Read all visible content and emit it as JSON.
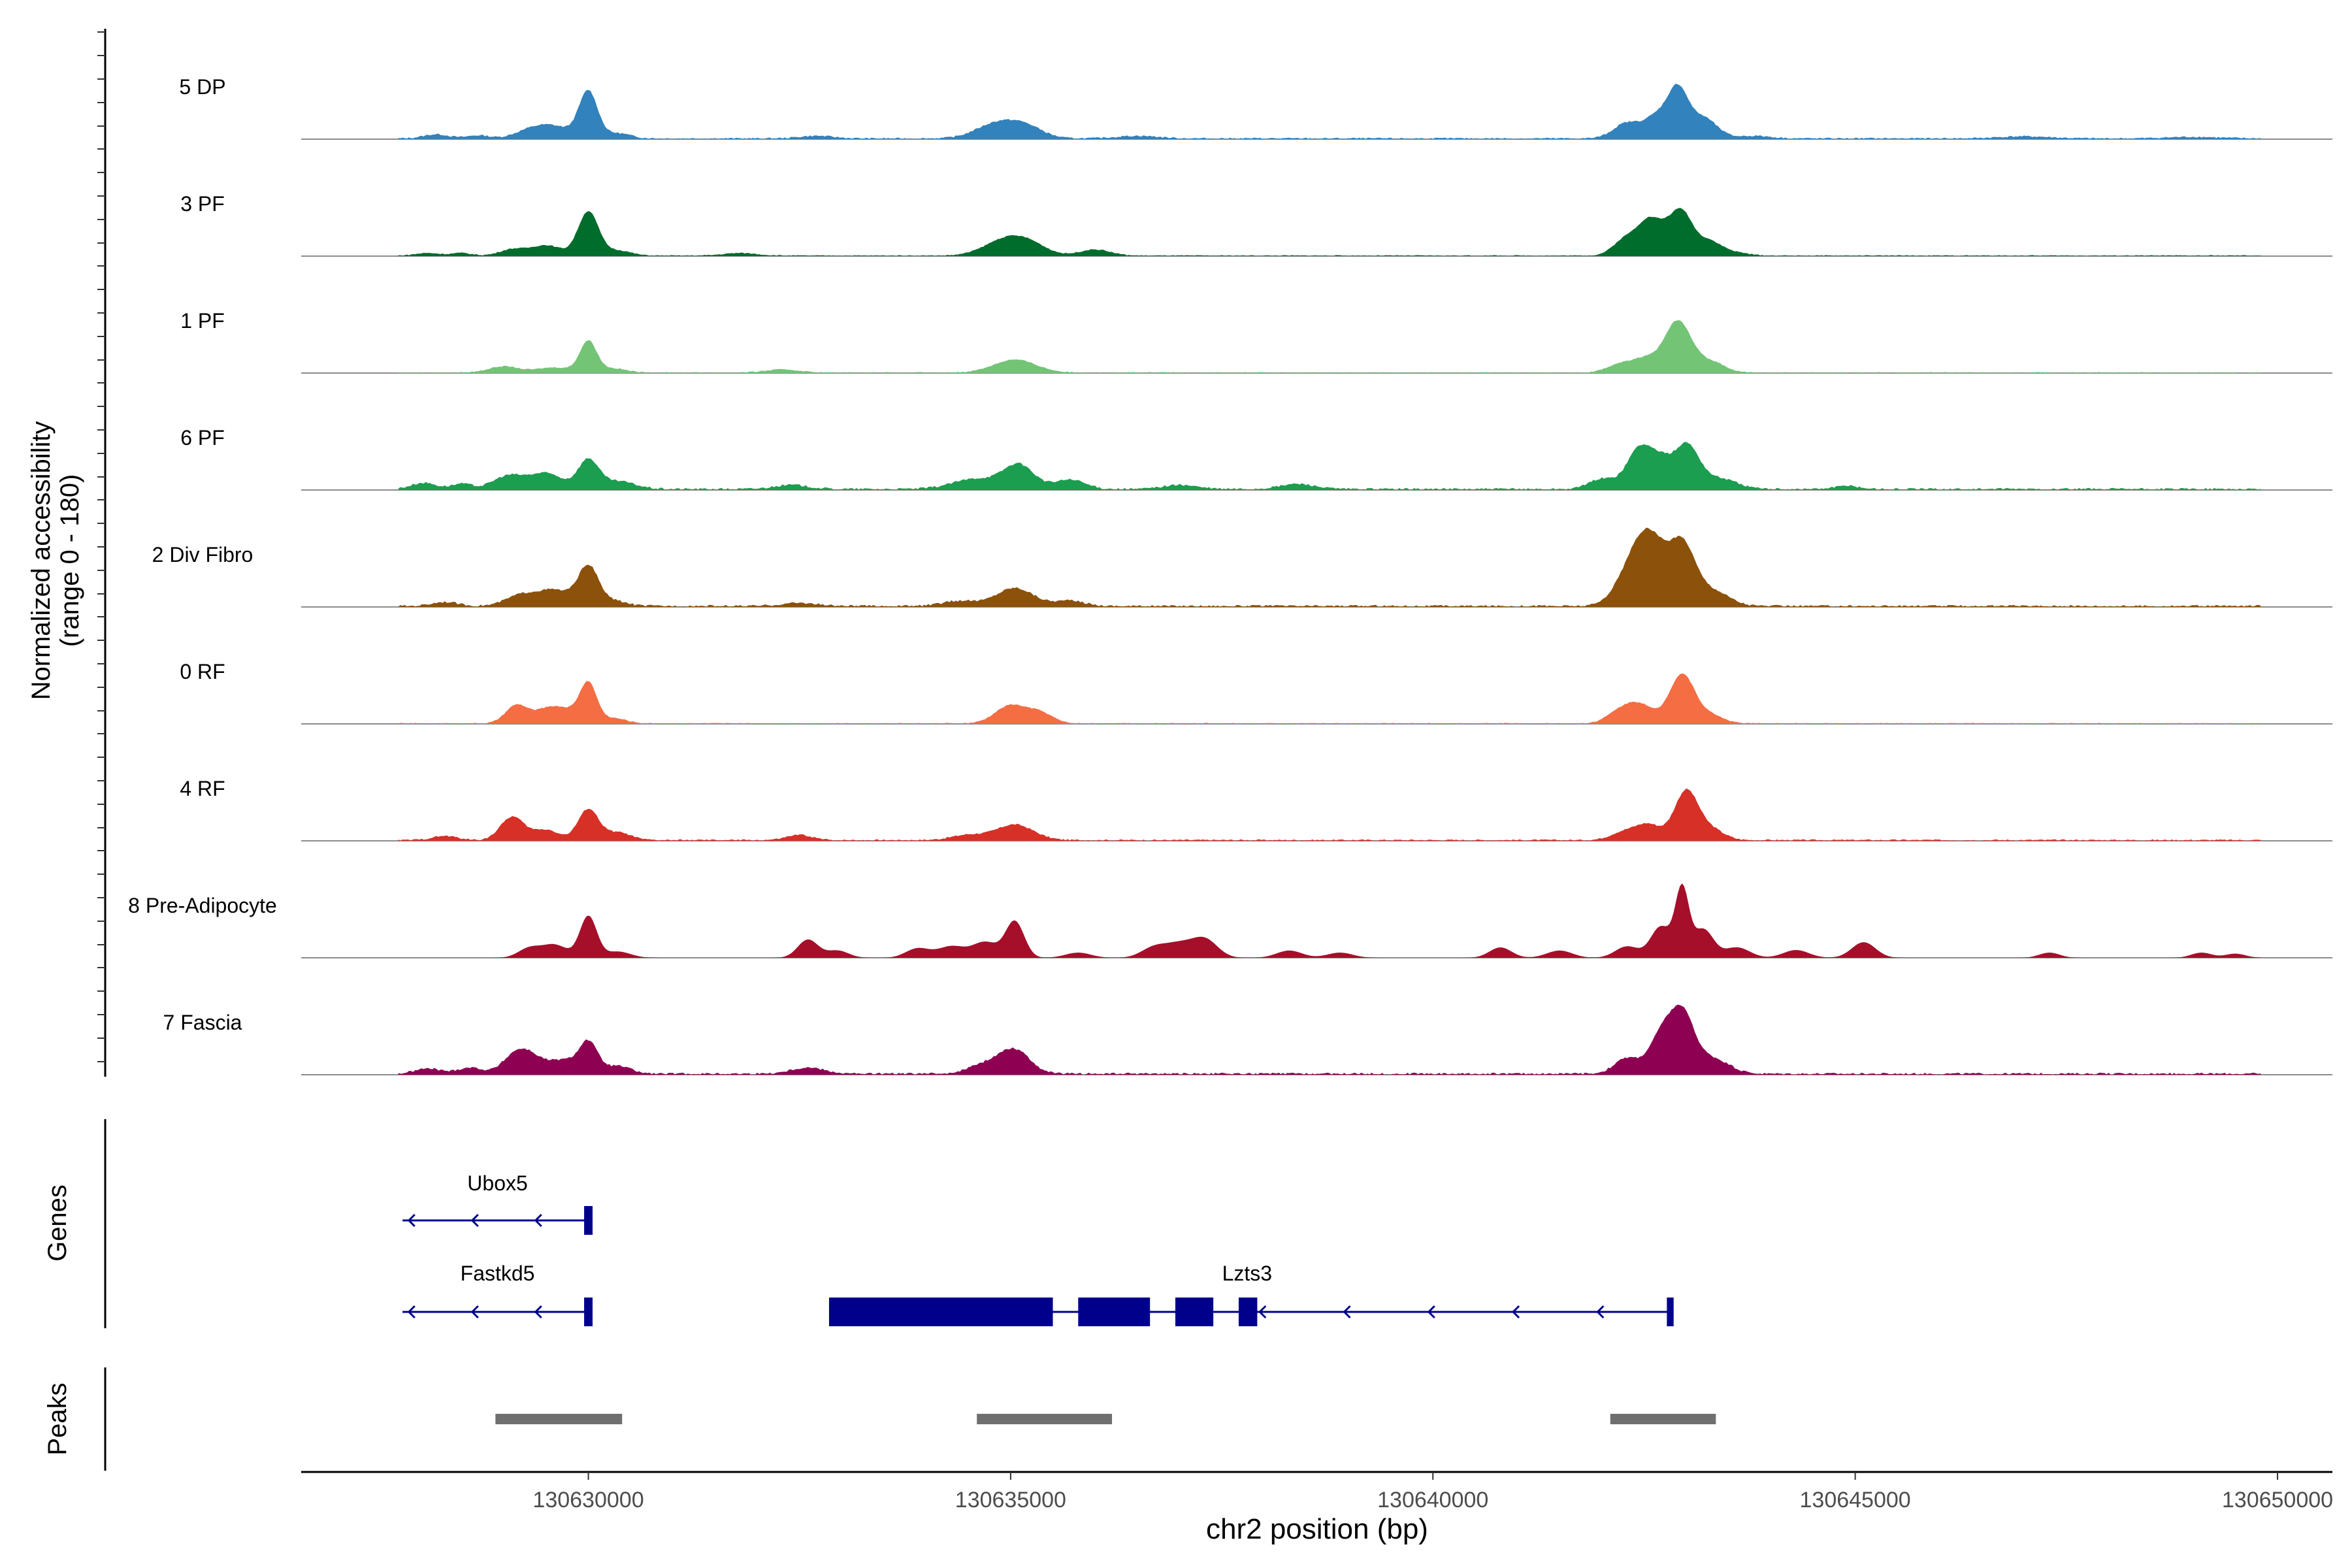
{
  "chart_data": {
    "type": "area",
    "title": "",
    "xlabel": "chr2 position (bp)",
    "ylabel_line1": "Normalized accessibility",
    "ylabel_line2": "(range 0 - 180)",
    "ylim": [
      0,
      180
    ],
    "xlim": [
      126600,
      150650
    ],
    "x_offset_label": 130600000,
    "x_ticks": [
      130000,
      135000,
      140000,
      145000,
      150000
    ],
    "x_tick_labels": [
      "130630000",
      "130635000",
      "130640000",
      "130645000",
      "130650000"
    ],
    "tracks": [
      {
        "name": "5 DP",
        "color": "#3182bd",
        "peaks": [
          [
            128200,
            8,
            150
          ],
          [
            128700,
            6,
            130
          ],
          [
            129300,
            14,
            180
          ],
          [
            129600,
            22,
            200
          ],
          [
            130000,
            90,
            110
          ],
          [
            130350,
            10,
            150
          ],
          [
            132700,
            5,
            200
          ],
          [
            134850,
            30,
            250
          ],
          [
            135200,
            18,
            200
          ],
          [
            136500,
            5,
            250
          ],
          [
            142300,
            30,
            160
          ],
          [
            142650,
            40,
            140
          ],
          [
            142900,
            90,
            120
          ],
          [
            143200,
            40,
            160
          ],
          [
            143800,
            5,
            200
          ],
          [
            147000,
            4,
            300
          ],
          [
            149000,
            3,
            300
          ]
        ],
        "noise": 3
      },
      {
        "name": "3 PF",
        "color": "#006d2c",
        "peaks": [
          [
            128100,
            5,
            150
          ],
          [
            128500,
            5,
            120
          ],
          [
            129100,
            12,
            150
          ],
          [
            129500,
            20,
            180
          ],
          [
            130000,
            85,
            120
          ],
          [
            130350,
            10,
            150
          ],
          [
            131800,
            5,
            200
          ],
          [
            134950,
            32,
            250
          ],
          [
            135250,
            15,
            200
          ],
          [
            136000,
            12,
            180
          ],
          [
            142300,
            35,
            150
          ],
          [
            142550,
            55,
            120
          ],
          [
            142750,
            40,
            120
          ],
          [
            142950,
            75,
            120
          ],
          [
            143250,
            30,
            160
          ],
          [
            143600,
            5,
            150
          ]
        ],
        "noise": 2
      },
      {
        "name": "1 PF",
        "color": "#74c476",
        "peaks": [
          [
            129000,
            12,
            180
          ],
          [
            129600,
            10,
            200
          ],
          [
            130000,
            60,
            100
          ],
          [
            130300,
            8,
            150
          ],
          [
            132300,
            6,
            200
          ],
          [
            135050,
            25,
            250
          ],
          [
            142200,
            15,
            150
          ],
          [
            142500,
            25,
            150
          ],
          [
            142900,
            100,
            160
          ],
          [
            143300,
            20,
            160
          ]
        ],
        "noise": 2
      },
      {
        "name": "6 PF",
        "color": "#1b9e4f",
        "peaks": [
          [
            128050,
            12,
            150
          ],
          [
            128500,
            10,
            120
          ],
          [
            129050,
            25,
            180
          ],
          [
            129500,
            30,
            200
          ],
          [
            130000,
            55,
            120
          ],
          [
            130350,
            15,
            200
          ],
          [
            132400,
            8,
            200
          ],
          [
            134600,
            20,
            280
          ],
          [
            135100,
            45,
            180
          ],
          [
            135700,
            18,
            180
          ],
          [
            137000,
            8,
            200
          ],
          [
            138400,
            10,
            200
          ],
          [
            142000,
            20,
            150
          ],
          [
            142450,
            80,
            150
          ],
          [
            142700,
            40,
            120
          ],
          [
            143000,
            85,
            150
          ],
          [
            143400,
            20,
            200
          ],
          [
            144900,
            6,
            150
          ]
        ],
        "noise": 4
      },
      {
        "name": "2 Div Fibro",
        "color": "#8c510a",
        "peaks": [
          [
            128300,
            8,
            150
          ],
          [
            129200,
            20,
            180
          ],
          [
            129600,
            30,
            200
          ],
          [
            130000,
            75,
            120
          ],
          [
            130300,
            10,
            150
          ],
          [
            132500,
            6,
            200
          ],
          [
            134400,
            10,
            200
          ],
          [
            135050,
            35,
            220
          ],
          [
            135700,
            10,
            180
          ],
          [
            142200,
            20,
            150
          ],
          [
            142450,
            105,
            170
          ],
          [
            142650,
            70,
            150
          ],
          [
            142950,
            115,
            150
          ],
          [
            143300,
            30,
            200
          ]
        ],
        "noise": 4
      },
      {
        "name": "0 RF",
        "color": "#f46d43",
        "peaks": [
          [
            129150,
            35,
            130
          ],
          [
            129500,
            25,
            150
          ],
          [
            129750,
            22,
            150
          ],
          [
            130000,
            75,
            100
          ],
          [
            130300,
            10,
            150
          ],
          [
            135000,
            35,
            180
          ],
          [
            135350,
            20,
            150
          ],
          [
            142200,
            20,
            150
          ],
          [
            142450,
            35,
            160
          ],
          [
            142950,
            95,
            150
          ],
          [
            143300,
            15,
            150
          ]
        ],
        "noise": 2
      },
      {
        "name": "4 RF",
        "color": "#d73027",
        "peaks": [
          [
            128300,
            8,
            150
          ],
          [
            129100,
            45,
            140
          ],
          [
            129500,
            20,
            150
          ],
          [
            130000,
            60,
            120
          ],
          [
            130350,
            15,
            150
          ],
          [
            132500,
            10,
            150
          ],
          [
            134500,
            10,
            200
          ],
          [
            135050,
            30,
            220
          ],
          [
            142250,
            15,
            150
          ],
          [
            142550,
            30,
            150
          ],
          [
            143000,
            95,
            140
          ],
          [
            143300,
            20,
            150
          ]
        ],
        "noise": 3
      },
      {
        "name": "8 Pre-Adipocyte",
        "color": "#a50f2a",
        "peaks": [
          [
            129300,
            18,
            130
          ],
          [
            129600,
            25,
            150
          ],
          [
            130000,
            80,
            100
          ],
          [
            130350,
            12,
            150
          ],
          [
            132600,
            35,
            120
          ],
          [
            132950,
            14,
            130
          ],
          [
            133900,
            18,
            140
          ],
          [
            134300,
            22,
            160
          ],
          [
            134700,
            30,
            150
          ],
          [
            135050,
            70,
            110
          ],
          [
            135800,
            10,
            150
          ],
          [
            136700,
            20,
            150
          ],
          [
            137000,
            25,
            160
          ],
          [
            137300,
            35,
            150
          ],
          [
            138300,
            14,
            150
          ],
          [
            138900,
            10,
            150
          ],
          [
            140800,
            20,
            130
          ],
          [
            141500,
            14,
            150
          ],
          [
            142300,
            22,
            140
          ],
          [
            142700,
            60,
            120
          ],
          [
            142950,
            130,
            80
          ],
          [
            143200,
            55,
            120
          ],
          [
            143600,
            20,
            150
          ],
          [
            144300,
            15,
            150
          ],
          [
            145100,
            30,
            140
          ],
          [
            147300,
            10,
            120
          ],
          [
            149100,
            10,
            120
          ],
          [
            149500,
            8,
            120
          ]
        ],
        "noise": 0
      },
      {
        "name": "7 Fascia",
        "color": "#8e0152",
        "peaks": [
          [
            128100,
            10,
            150
          ],
          [
            128600,
            12,
            150
          ],
          [
            129100,
            25,
            140
          ],
          [
            129300,
            35,
            160
          ],
          [
            129700,
            25,
            160
          ],
          [
            130000,
            60,
            110
          ],
          [
            130350,
            15,
            150
          ],
          [
            132600,
            12,
            200
          ],
          [
            134700,
            18,
            200
          ],
          [
            135050,
            45,
            180
          ],
          [
            142300,
            30,
            150
          ],
          [
            142700,
            70,
            140
          ],
          [
            142950,
            110,
            140
          ],
          [
            143300,
            30,
            200
          ]
        ],
        "noise": 4
      }
    ],
    "genes": [
      {
        "name": "Ubox5",
        "row": 1,
        "strand": "-",
        "start": 127800,
        "end": 130050,
        "exons": [
          [
            129950,
            130050
          ]
        ]
      },
      {
        "name": "Fastkd5",
        "row": 2,
        "strand": "-",
        "start": 127800,
        "end": 130050,
        "exons": [
          [
            129950,
            130050
          ]
        ]
      },
      {
        "name": "Lzts3",
        "row": 2,
        "strand": "-",
        "start": 132850,
        "end": 142850,
        "exons": [
          [
            132850,
            135500
          ],
          [
            135800,
            136650
          ],
          [
            136950,
            137400
          ],
          [
            137700,
            137920
          ],
          [
            142770,
            142850
          ]
        ]
      }
    ],
    "peaks": [
      [
        128900,
        130400
      ],
      [
        134600,
        136200
      ],
      [
        142100,
        143350
      ]
    ],
    "track_label": "Genes",
    "peaks_label": "Peaks"
  }
}
